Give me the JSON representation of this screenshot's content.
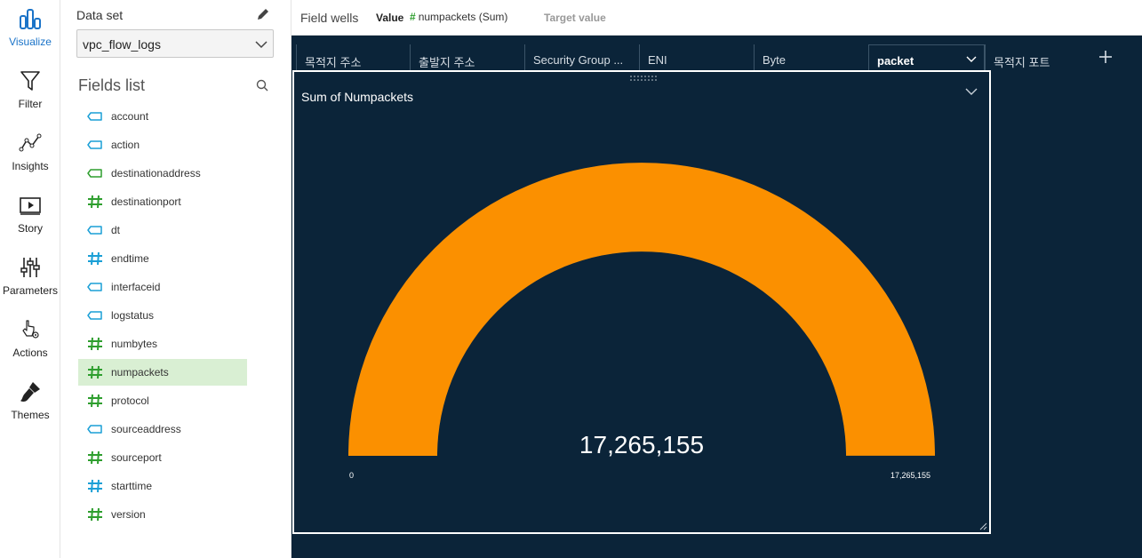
{
  "nav": {
    "items": [
      {
        "label": "Visualize",
        "icon": "bar-chart-icon",
        "active": true
      },
      {
        "label": "Filter",
        "icon": "funnel-icon"
      },
      {
        "label": "Insights",
        "icon": "insights-line-icon"
      },
      {
        "label": "Story",
        "icon": "story-play-icon"
      },
      {
        "label": "Parameters",
        "icon": "sliders-icon"
      },
      {
        "label": "Actions",
        "icon": "pointer-gear-icon"
      },
      {
        "label": "Themes",
        "icon": "paintbrush-icon"
      }
    ]
  },
  "dataset": {
    "label": "Data set",
    "selected": "vpc_flow_logs",
    "edit_icon": "pencil-icon"
  },
  "fields": {
    "title": "Fields list",
    "search_icon": "search-icon",
    "items": [
      {
        "name": "account",
        "type": "dimension"
      },
      {
        "name": "action",
        "type": "dimension"
      },
      {
        "name": "destinationaddress",
        "type": "dimension-green"
      },
      {
        "name": "destinationport",
        "type": "measure"
      },
      {
        "name": "dt",
        "type": "dimension"
      },
      {
        "name": "endtime",
        "type": "measure-blue"
      },
      {
        "name": "interfaceid",
        "type": "dimension"
      },
      {
        "name": "logstatus",
        "type": "dimension"
      },
      {
        "name": "numbytes",
        "type": "measure"
      },
      {
        "name": "numpackets",
        "type": "measure",
        "selected": true
      },
      {
        "name": "protocol",
        "type": "measure"
      },
      {
        "name": "sourceaddress",
        "type": "dimension"
      },
      {
        "name": "sourceport",
        "type": "measure"
      },
      {
        "name": "starttime",
        "type": "measure-blue"
      },
      {
        "name": "version",
        "type": "measure"
      }
    ]
  },
  "fieldwells": {
    "title": "Field wells",
    "value_label": "Value",
    "value_chip": "numpackets (Sum)",
    "target_label": "Target value"
  },
  "sheets": {
    "tabs": [
      "목적지 주소",
      "출발지 주소",
      "Security Group ...",
      "ENI",
      "Byte",
      "packet",
      "목적지 포트"
    ],
    "active": "packet",
    "add_icon": "plus-icon"
  },
  "visual": {
    "title": "Sum of Numpackets",
    "menu_icon": "chevron-down-icon",
    "drag_icon": "drag-handle-icon",
    "resize_icon": "resize-icon"
  },
  "chart_data": {
    "type": "gauge",
    "title": "Sum of Numpackets",
    "value": 17265155,
    "value_label": "17,265,155",
    "min": 0,
    "max": 17265155,
    "min_label": "0",
    "max_label": "17,265,155",
    "fill_fraction": 1.0,
    "color": "#fb9000",
    "background": "#0b2439"
  },
  "colors": {
    "accent": "#1a73c8",
    "measure": "#2e9e2e",
    "dimension": "#1a9fd6",
    "selected_field_bg": "#d9efd3",
    "canvas_bg": "#0b2439"
  }
}
